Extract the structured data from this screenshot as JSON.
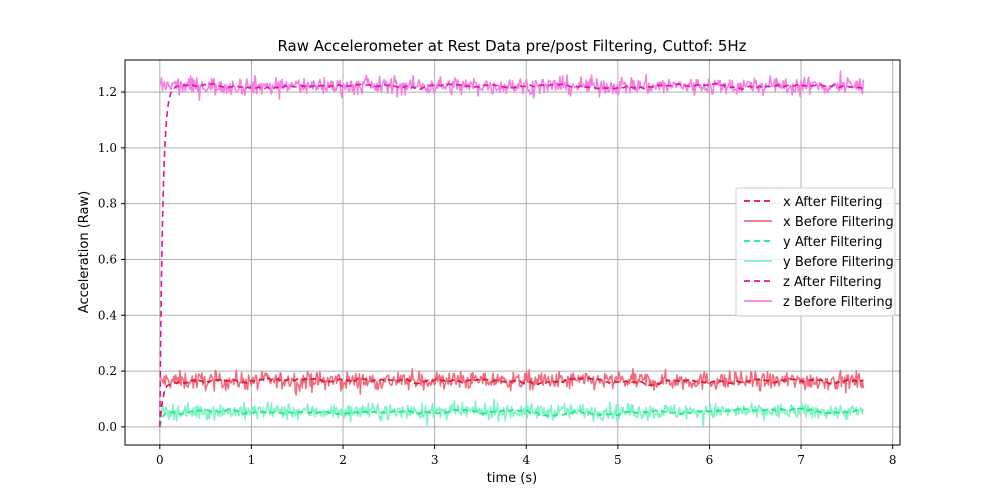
{
  "chart_data": {
    "type": "line",
    "title": "Raw Accelerometer at Rest Data pre/post Filtering, Cuttof: 5Hz",
    "xlabel": "time (s)",
    "ylabel": "Acceleration (Raw)",
    "xlim": [
      -0.38,
      8.08
    ],
    "ylim": [
      -0.065,
      1.315
    ],
    "xticks": [
      0,
      1,
      2,
      3,
      4,
      5,
      6,
      7,
      8
    ],
    "xtick_labels": [
      "0",
      "1",
      "2",
      "3",
      "4",
      "5",
      "6",
      "7",
      "8"
    ],
    "yticks": [
      0.0,
      0.2,
      0.4,
      0.6,
      0.8,
      1.0,
      1.2
    ],
    "ytick_labels": [
      "0.0",
      "0.2",
      "0.4",
      "0.6",
      "0.8",
      "1.0",
      "1.2"
    ],
    "grid": true,
    "legend_position": "center-right",
    "time_range": [
      0,
      7.68
    ],
    "filter_cutoff_hz": 5,
    "series": [
      {
        "name": "x After Filtering",
        "style": "dashed",
        "color": "#dc143c",
        "start": 0.0,
        "level": 0.165,
        "noise": 0.006
      },
      {
        "name": "x Before Filtering",
        "style": "solid",
        "color": "#f26b7c",
        "level": 0.165,
        "noise": 0.016
      },
      {
        "name": "y After Filtering",
        "style": "dashed",
        "color": "#19e88a",
        "start": 0.0,
        "level": 0.055,
        "noise": 0.005
      },
      {
        "name": "y Before Filtering",
        "style": "solid",
        "color": "#7ef5c2",
        "level": 0.055,
        "noise": 0.014
      },
      {
        "name": "z After Filtering",
        "style": "dashed",
        "color": "#e013a8",
        "start": 0.0,
        "level": 1.222,
        "noise": 0.005
      },
      {
        "name": "z Before Filtering",
        "style": "solid",
        "color": "#f57fde",
        "level": 1.222,
        "noise": 0.016
      }
    ]
  }
}
